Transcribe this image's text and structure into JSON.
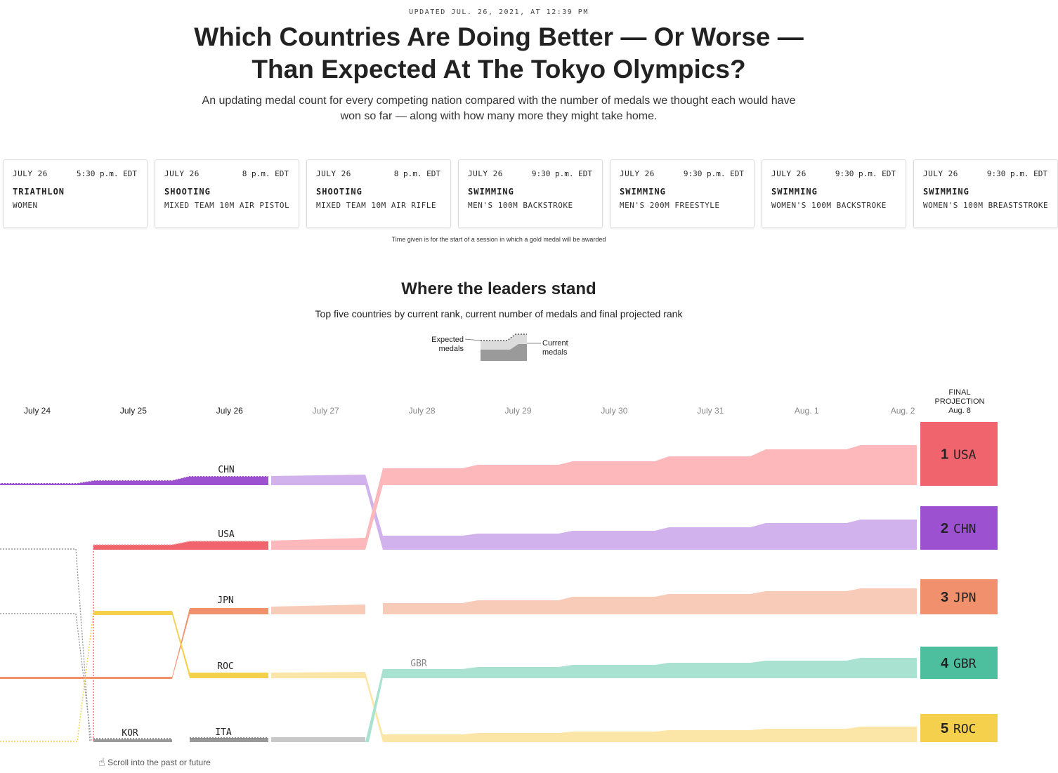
{
  "header": {
    "updated": "UPDATED JUL. 26, 2021, AT 12:39 PM",
    "title_line1": "Which Countries Are Doing Better — Or Worse —",
    "title_line2": "Than Expected At The Tokyo Olympics?",
    "subtitle_line1": "An updating medal count for every competing nation compared with the number of medals we thought each would have",
    "subtitle_line2": "won so far — along with how many more they might take home."
  },
  "schedule": {
    "events": [
      {
        "date": "JULY 26",
        "time": "5:30 p.m. EDT",
        "sport": "TRIATHLON",
        "detail": "WOMEN"
      },
      {
        "date": "JULY 26",
        "time": "8 p.m. EDT",
        "sport": "SHOOTING",
        "detail": "MIXED TEAM 10M AIR PISTOL"
      },
      {
        "date": "JULY 26",
        "time": "8 p.m. EDT",
        "sport": "SHOOTING",
        "detail": "MIXED TEAM 10M AIR RIFLE"
      },
      {
        "date": "JULY 26",
        "time": "9:30 p.m. EDT",
        "sport": "SWIMMING",
        "detail": "MEN'S 100M BACKSTROKE"
      },
      {
        "date": "JULY 26",
        "time": "9:30 p.m. EDT",
        "sport": "SWIMMING",
        "detail": "MEN'S 200M FREESTYLE"
      },
      {
        "date": "JULY 26",
        "time": "9:30 p.m. EDT",
        "sport": "SWIMMING",
        "detail": "WOMEN'S 100M BACKSTROKE"
      },
      {
        "date": "JULY 26",
        "time": "9:30 p.m. EDT",
        "sport": "SWIMMING",
        "detail": "WOMEN'S 100M BREASTSTROKE"
      }
    ],
    "note": "Time given is for the start of a session in which a gold medal will be awarded"
  },
  "leaders": {
    "title": "Where the leaders stand",
    "subtitle": "Top five countries by current rank, current number of medals and final projected rank",
    "legend_expected_line1": "Expected",
    "legend_expected_line2": "medals",
    "legend_current_line1": "Current",
    "legend_current_line2": "medals"
  },
  "scroll_hint": "Scroll into the past or future",
  "colors": {
    "USA": "#f0646e",
    "CHN": "#9b51d0",
    "JPN": "#f0906c",
    "GBR": "#4dbf9e",
    "ROC": "#f4d04c",
    "KOR": "#999999",
    "ITA": "#999999",
    "other": "#999999"
  },
  "chart_data": {
    "type": "area",
    "dates": [
      "July 24",
      "July 25",
      "July 26",
      "July 27",
      "July 28",
      "July 29",
      "July 30",
      "July 31",
      "Aug. 1",
      "Aug. 2"
    ],
    "past_dates": [
      "July 24",
      "July 25",
      "July 26"
    ],
    "final_header_line1": "FINAL",
    "final_header_line2": "PROJECTION",
    "final_header_line3": "Aug. 8",
    "current_leaders_on_july26": [
      {
        "rank": 1,
        "country": "CHN"
      },
      {
        "rank": 2,
        "country": "USA"
      },
      {
        "rank": 3,
        "country": "JPN"
      },
      {
        "rank": 4,
        "country": "ROC"
      },
      {
        "rank": 5,
        "country": "ITA"
      }
    ],
    "other_labels": [
      {
        "country": "KOR",
        "date": "July 25",
        "rank": 5
      },
      {
        "country": "GBR",
        "date": "July 28",
        "rank": 4
      }
    ],
    "projected_order_july28_onward": [
      "USA",
      "CHN",
      "JPN",
      "GBR",
      "ROC"
    ],
    "final_projection": [
      {
        "rank": "1",
        "country": "USA"
      },
      {
        "rank": "2",
        "country": "CHN"
      },
      {
        "rank": "3",
        "country": "JPN"
      },
      {
        "rank": "4",
        "country": "GBR"
      },
      {
        "rank": "5",
        "country": "ROC"
      }
    ]
  }
}
